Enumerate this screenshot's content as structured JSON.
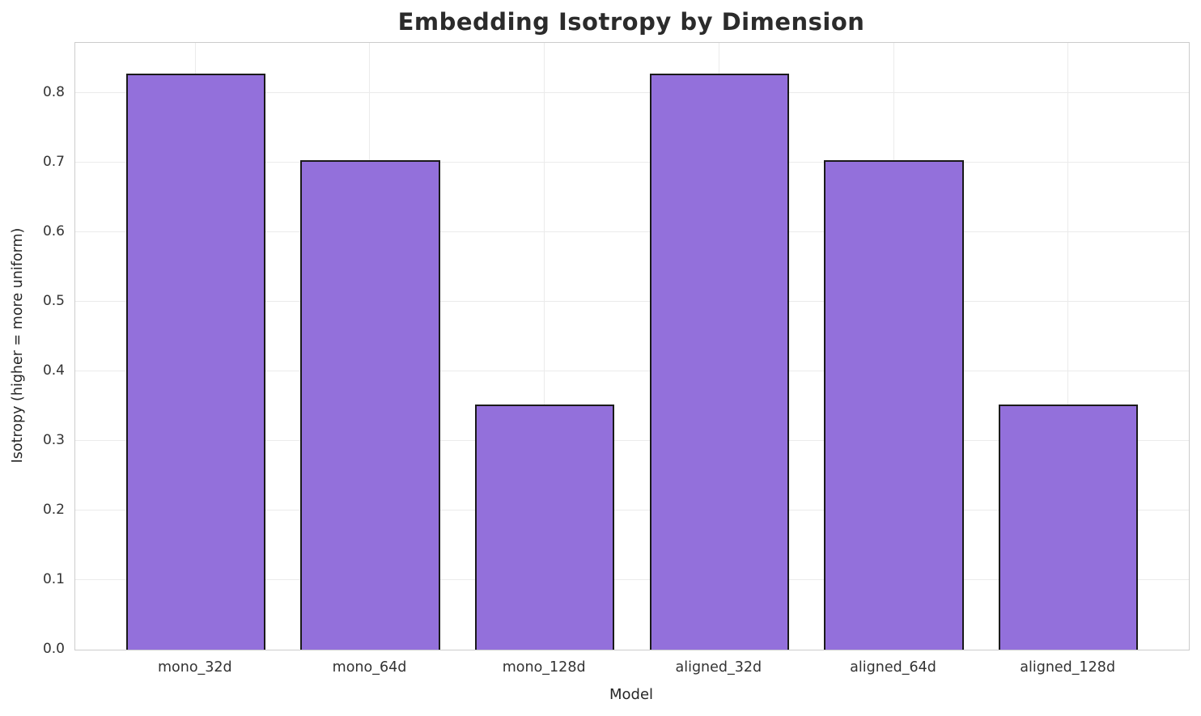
{
  "chart_data": {
    "type": "bar",
    "title": "Embedding Isotropy by Dimension",
    "xlabel": "Model",
    "ylabel": "Isotropy (higher = more uniform)",
    "categories": [
      "mono_32d",
      "mono_64d",
      "mono_128d",
      "aligned_32d",
      "aligned_64d",
      "aligned_128d"
    ],
    "values": [
      0.828,
      0.703,
      0.352,
      0.828,
      0.703,
      0.352
    ],
    "ylim": [
      0,
      0.872
    ],
    "yticks": [
      "0.0",
      "0.1",
      "0.2",
      "0.3",
      "0.4",
      "0.5",
      "0.6",
      "0.7",
      "0.8"
    ],
    "grid": "both",
    "legend": "none",
    "bar_width_ratio": 0.8,
    "colors": {
      "bar_fill": "#9370DB",
      "bar_edge": "#1a1a1a",
      "grid": "#ebebeb",
      "spine": "#cccccc",
      "text": "#262626",
      "background": "#ffffff"
    }
  }
}
